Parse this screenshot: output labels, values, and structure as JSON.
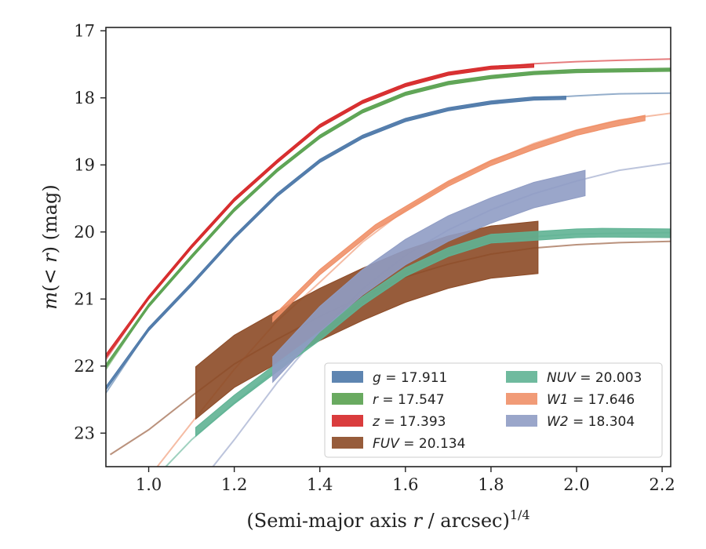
{
  "chart_data": {
    "type": "line",
    "xlabel": "(Semi-major axis r / arcsec)^{1/4}",
    "ylabel": "m(< r) (mag)",
    "xlim": [
      0.9,
      2.22
    ],
    "ylim": [
      23.5,
      16.95
    ],
    "y_inverted": true,
    "x_ticks": [
      1.0,
      1.2,
      1.4,
      1.6,
      1.8,
      2.0,
      2.2
    ],
    "x_tick_labels": [
      "1.0",
      "1.2",
      "1.4",
      "1.6",
      "1.8",
      "2.0",
      "2.2"
    ],
    "y_ticks": [
      17,
      18,
      19,
      20,
      21,
      22,
      23
    ],
    "y_tick_labels": [
      "17",
      "18",
      "19",
      "20",
      "21",
      "22",
      "23"
    ],
    "grid": false,
    "legend_position": "lower-right",
    "legend_entries": [
      {
        "band": "g",
        "value": "17.911"
      },
      {
        "band": "r",
        "value": "17.547"
      },
      {
        "band": "z",
        "value": "17.393"
      },
      {
        "band": "FUV",
        "value": "20.134"
      },
      {
        "band": "NUV",
        "value": "20.003"
      },
      {
        "band": "W1",
        "value": "17.646"
      },
      {
        "band": "W2",
        "value": "18.304"
      }
    ],
    "series": [
      {
        "name": "g",
        "color": "#4c78a8",
        "model": [
          [
            0.9,
            22.4
          ],
          [
            1.0,
            21.45
          ],
          [
            1.1,
            20.78
          ],
          [
            1.2,
            20.08
          ],
          [
            1.3,
            19.45
          ],
          [
            1.4,
            18.94
          ],
          [
            1.5,
            18.58
          ],
          [
            1.6,
            18.33
          ],
          [
            1.7,
            18.17
          ],
          [
            1.8,
            18.07
          ],
          [
            1.9,
            18.01
          ],
          [
            2.0,
            17.97
          ],
          [
            2.1,
            17.94
          ],
          [
            2.22,
            17.93
          ]
        ],
        "obs": [
          [
            0.9,
            22.33
          ],
          [
            1.0,
            21.45
          ],
          [
            1.1,
            20.78
          ],
          [
            1.2,
            20.08
          ],
          [
            1.3,
            19.45
          ],
          [
            1.4,
            18.94
          ],
          [
            1.5,
            18.58
          ],
          [
            1.6,
            18.33
          ],
          [
            1.7,
            18.17
          ],
          [
            1.8,
            18.07
          ],
          [
            1.9,
            18.01
          ],
          [
            1.975,
            18.0
          ]
        ],
        "obs_width": 0.05
      },
      {
        "name": "r",
        "color": "#59a14f",
        "model": [
          [
            0.9,
            22.05
          ],
          [
            1.0,
            21.1
          ],
          [
            1.1,
            20.37
          ],
          [
            1.2,
            19.67
          ],
          [
            1.3,
            19.08
          ],
          [
            1.4,
            18.58
          ],
          [
            1.5,
            18.2
          ],
          [
            1.6,
            17.94
          ],
          [
            1.7,
            17.78
          ],
          [
            1.8,
            17.69
          ],
          [
            1.9,
            17.63
          ],
          [
            2.0,
            17.6
          ],
          [
            2.1,
            17.59
          ],
          [
            2.22,
            17.58
          ]
        ],
        "obs": [
          [
            0.9,
            22.0
          ],
          [
            1.0,
            21.1
          ],
          [
            1.1,
            20.37
          ],
          [
            1.2,
            19.67
          ],
          [
            1.3,
            19.08
          ],
          [
            1.4,
            18.58
          ],
          [
            1.5,
            18.2
          ],
          [
            1.6,
            17.94
          ],
          [
            1.7,
            17.78
          ],
          [
            1.8,
            17.69
          ],
          [
            1.9,
            17.63
          ],
          [
            2.0,
            17.6
          ],
          [
            2.1,
            17.59
          ],
          [
            2.22,
            17.58
          ]
        ],
        "obs_width": 0.05
      },
      {
        "name": "z",
        "color": "#d62728",
        "model": [
          [
            0.9,
            21.9
          ],
          [
            1.0,
            20.98
          ],
          [
            1.1,
            20.22
          ],
          [
            1.2,
            19.52
          ],
          [
            1.3,
            18.95
          ],
          [
            1.4,
            18.42
          ],
          [
            1.5,
            18.06
          ],
          [
            1.6,
            17.81
          ],
          [
            1.7,
            17.64
          ],
          [
            1.8,
            17.55
          ],
          [
            1.9,
            17.49
          ],
          [
            2.0,
            17.46
          ],
          [
            2.1,
            17.44
          ],
          [
            2.22,
            17.42
          ]
        ],
        "obs": [
          [
            0.9,
            21.85
          ],
          [
            1.0,
            20.98
          ],
          [
            1.1,
            20.22
          ],
          [
            1.2,
            19.52
          ],
          [
            1.3,
            18.95
          ],
          [
            1.4,
            18.42
          ],
          [
            1.5,
            18.06
          ],
          [
            1.6,
            17.81
          ],
          [
            1.7,
            17.64
          ],
          [
            1.8,
            17.55
          ],
          [
            1.9,
            17.52
          ]
        ],
        "obs_width": 0.05
      },
      {
        "name": "FUV",
        "color": "#8c4a26",
        "model": [
          [
            0.91,
            23.32
          ],
          [
            1.0,
            22.95
          ],
          [
            1.1,
            22.45
          ],
          [
            1.2,
            21.97
          ],
          [
            1.3,
            21.6
          ],
          [
            1.4,
            21.26
          ],
          [
            1.5,
            20.96
          ],
          [
            1.6,
            20.67
          ],
          [
            1.7,
            20.48
          ],
          [
            1.8,
            20.33
          ],
          [
            1.9,
            20.24
          ],
          [
            2.0,
            20.19
          ],
          [
            2.1,
            20.16
          ],
          [
            2.22,
            20.14
          ]
        ],
        "obs": [
          [
            1.11,
            22.4
          ],
          [
            1.2,
            21.93
          ],
          [
            1.3,
            21.57
          ],
          [
            1.4,
            21.23
          ],
          [
            1.5,
            20.93
          ],
          [
            1.6,
            20.66
          ],
          [
            1.7,
            20.45
          ],
          [
            1.8,
            20.3
          ],
          [
            1.91,
            20.23
          ]
        ],
        "obs_width": 0.78
      },
      {
        "name": "NUV",
        "color": "#5fb394",
        "model": [
          [
            1.04,
            23.5
          ],
          [
            1.1,
            23.1
          ],
          [
            1.2,
            22.55
          ],
          [
            1.3,
            22.05
          ],
          [
            1.4,
            21.57
          ],
          [
            1.5,
            21.05
          ],
          [
            1.6,
            20.62
          ],
          [
            1.7,
            20.32
          ],
          [
            1.8,
            20.15
          ],
          [
            1.9,
            20.07
          ],
          [
            2.0,
            20.03
          ],
          [
            2.1,
            20.02
          ],
          [
            2.22,
            20.01
          ]
        ],
        "obs": [
          [
            1.11,
            22.98
          ],
          [
            1.2,
            22.5
          ],
          [
            1.3,
            22.02
          ],
          [
            1.4,
            21.55
          ],
          [
            1.5,
            21.03
          ],
          [
            1.6,
            20.6
          ],
          [
            1.7,
            20.3
          ],
          [
            1.8,
            20.1
          ],
          [
            1.9,
            20.06
          ],
          [
            2.0,
            20.02
          ],
          [
            2.06,
            20.01
          ],
          [
            2.22,
            20.02
          ]
        ],
        "obs_width": 0.13
      },
      {
        "name": "W1",
        "color": "#ef9068",
        "model": [
          [
            1.02,
            23.5
          ],
          [
            1.1,
            22.85
          ],
          [
            1.2,
            22.05
          ],
          [
            1.3,
            21.33
          ],
          [
            1.4,
            20.75
          ],
          [
            1.5,
            20.15
          ],
          [
            1.6,
            19.67
          ],
          [
            1.7,
            19.27
          ],
          [
            1.8,
            18.95
          ],
          [
            1.9,
            18.68
          ],
          [
            2.0,
            18.48
          ],
          [
            2.1,
            18.33
          ],
          [
            2.22,
            18.23
          ]
        ],
        "obs": [
          [
            1.29,
            21.3
          ],
          [
            1.4,
            20.6
          ],
          [
            1.53,
            19.93
          ],
          [
            1.6,
            19.66
          ],
          [
            1.7,
            19.28
          ],
          [
            1.8,
            18.97
          ],
          [
            1.9,
            18.73
          ],
          [
            2.0,
            18.52
          ],
          [
            2.08,
            18.4
          ],
          [
            2.16,
            18.3
          ]
        ],
        "obs_width": 0.08
      },
      {
        "name": "W2",
        "color": "#8f9cc4",
        "model": [
          [
            1.15,
            23.5
          ],
          [
            1.2,
            23.1
          ],
          [
            1.3,
            22.25
          ],
          [
            1.4,
            21.5
          ],
          [
            1.5,
            20.85
          ],
          [
            1.6,
            20.35
          ],
          [
            1.7,
            19.97
          ],
          [
            1.8,
            19.67
          ],
          [
            1.9,
            19.43
          ],
          [
            2.0,
            19.24
          ],
          [
            2.1,
            19.08
          ],
          [
            2.22,
            18.97
          ]
        ],
        "obs": [
          [
            1.29,
            22.05
          ],
          [
            1.4,
            21.3
          ],
          [
            1.5,
            20.75
          ],
          [
            1.6,
            20.3
          ],
          [
            1.7,
            19.95
          ],
          [
            1.8,
            19.68
          ],
          [
            1.9,
            19.45
          ],
          [
            2.02,
            19.27
          ]
        ],
        "obs_width": 0.38
      }
    ]
  }
}
